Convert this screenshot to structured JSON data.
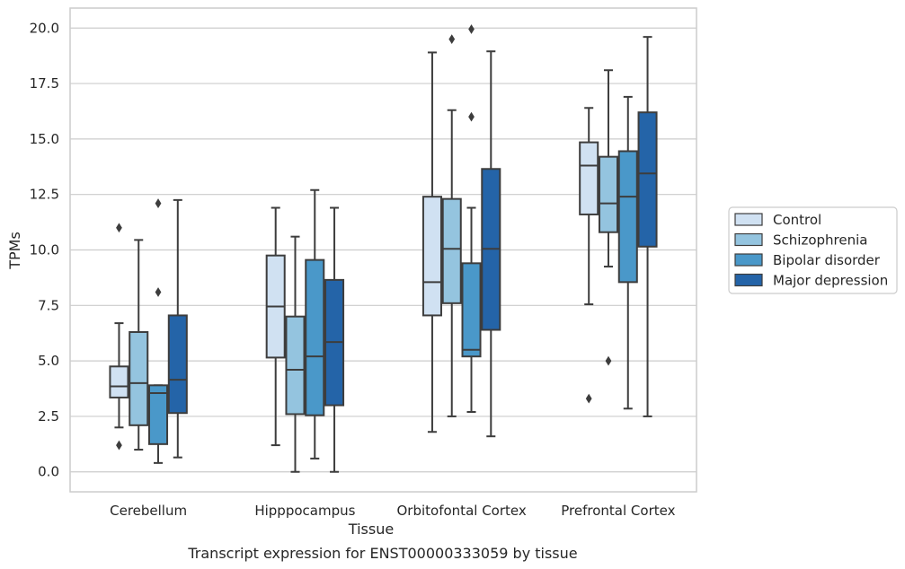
{
  "chart_data": {
    "type": "boxplot",
    "caption": "Transcript expression for ENST00000333059 by tissue",
    "xlabel": "Tissue",
    "ylabel": "TPMs",
    "ylim": [
      -0.9,
      20.9
    ],
    "yticks": [
      0.0,
      2.5,
      5.0,
      7.5,
      10.0,
      12.5,
      15.0,
      17.5,
      20.0
    ],
    "ytick_labels": [
      "0.0",
      "2.5",
      "5.0",
      "7.5",
      "10.0",
      "12.5",
      "15.0",
      "17.5",
      "20.0"
    ],
    "grid": "horizontal",
    "legend_position": "right, outside plot",
    "categories": [
      "Cerebellum",
      "Hipppocampus",
      "Orbitofontal Cortex",
      "Prefrontal Cortex"
    ],
    "series": [
      {
        "name": "Control",
        "color": "#d0e1f2",
        "boxes": [
          {
            "whislo": 2.0,
            "q1": 3.35,
            "med": 3.85,
            "q3": 4.75,
            "whishi": 6.7,
            "fliers": [
              11.0,
              1.2
            ]
          },
          {
            "whislo": 1.2,
            "q1": 5.15,
            "med": 7.45,
            "q3": 9.75,
            "whishi": 11.9,
            "fliers": []
          },
          {
            "whislo": 1.8,
            "q1": 7.05,
            "med": 8.55,
            "q3": 12.4,
            "whishi": 18.9,
            "fliers": []
          },
          {
            "whislo": 7.55,
            "q1": 11.6,
            "med": 13.8,
            "q3": 14.85,
            "whishi": 16.4,
            "fliers": [
              3.3
            ]
          }
        ]
      },
      {
        "name": "Schizophrenia",
        "color": "#94c4df",
        "boxes": [
          {
            "whislo": 1.0,
            "q1": 2.1,
            "med": 4.0,
            "q3": 6.3,
            "whishi": 10.45,
            "fliers": []
          },
          {
            "whislo": 0.0,
            "q1": 2.6,
            "med": 4.6,
            "q3": 7.0,
            "whishi": 10.6,
            "fliers": []
          },
          {
            "whislo": 2.5,
            "q1": 7.6,
            "med": 10.05,
            "q3": 12.3,
            "whishi": 16.3,
            "fliers": [
              19.5
            ]
          },
          {
            "whislo": 9.25,
            "q1": 10.8,
            "med": 12.1,
            "q3": 14.2,
            "whishi": 18.1,
            "fliers": [
              5.0
            ]
          }
        ]
      },
      {
        "name": "Bipolar disorder",
        "color": "#4a98c9",
        "boxes": [
          {
            "whislo": 0.4,
            "q1": 1.25,
            "med": 3.55,
            "q3": 3.9,
            "whishi": 3.9,
            "fliers": [
              12.1,
              8.1
            ]
          },
          {
            "whislo": 0.6,
            "q1": 2.55,
            "med": 5.2,
            "q3": 9.55,
            "whishi": 12.7,
            "fliers": []
          },
          {
            "whislo": 2.7,
            "q1": 5.2,
            "med": 5.5,
            "q3": 9.4,
            "whishi": 11.9,
            "fliers": [
              19.95,
              16.0
            ]
          },
          {
            "whislo": 2.85,
            "q1": 8.55,
            "med": 12.4,
            "q3": 14.45,
            "whishi": 16.9,
            "fliers": []
          }
        ]
      },
      {
        "name": "Major depression",
        "color": "#2464a8",
        "boxes": [
          {
            "whislo": 0.65,
            "q1": 2.65,
            "med": 4.15,
            "q3": 7.05,
            "whishi": 12.25,
            "fliers": []
          },
          {
            "whislo": 0.0,
            "q1": 3.0,
            "med": 5.85,
            "q3": 8.65,
            "whishi": 11.9,
            "fliers": []
          },
          {
            "whislo": 1.6,
            "q1": 6.4,
            "med": 10.05,
            "q3": 13.65,
            "whishi": 18.95,
            "fliers": []
          },
          {
            "whislo": 2.5,
            "q1": 10.15,
            "med": 13.45,
            "q3": 16.2,
            "whishi": 19.6,
            "fliers": []
          }
        ]
      }
    ]
  }
}
